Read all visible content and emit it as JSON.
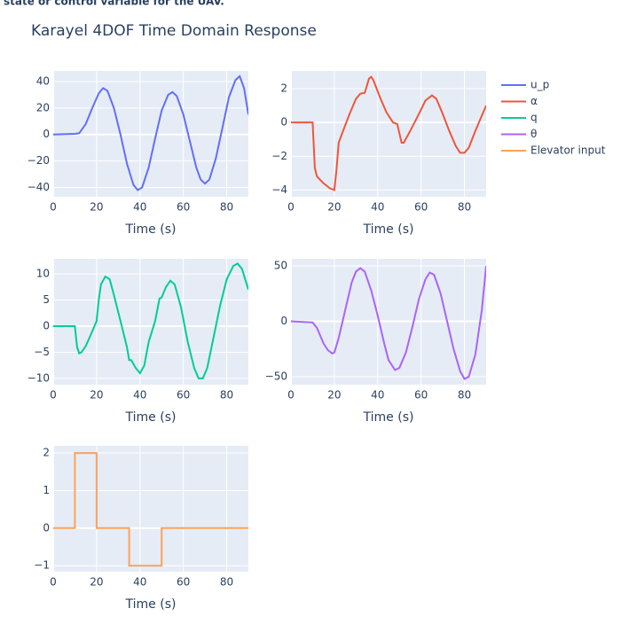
{
  "caption": "y state or control variable for the UAV.",
  "title": "Karayel 4DOF Time Domain Response",
  "chart_data": [
    {
      "type": "line",
      "xlabel": "Time (s)",
      "xlim": [
        0,
        90
      ],
      "xticks": [
        0,
        20,
        40,
        60,
        80
      ],
      "ylim": [
        -47,
        48
      ],
      "yticks": [
        {
          "value": -40,
          "label": "−40"
        },
        {
          "value": -20,
          "label": "−20"
        },
        0,
        20,
        40
      ],
      "grid": true,
      "x": [
        0,
        10,
        12,
        15,
        18,
        21,
        23,
        25,
        28,
        31,
        34,
        37,
        39,
        41,
        44,
        47,
        50,
        53,
        55,
        57,
        60,
        63,
        66,
        68,
        70,
        72,
        75,
        78,
        81,
        84,
        86,
        88,
        90
      ],
      "series": [
        {
          "name": "u_p",
          "color": "#636efa",
          "values": [
            0,
            0.5,
            1,
            8,
            20,
            31,
            35,
            33,
            20,
            0,
            -22,
            -38,
            -42,
            -40,
            -25,
            -3,
            18,
            30,
            32,
            29,
            15,
            -5,
            -25,
            -34,
            -37,
            -34,
            -18,
            5,
            28,
            41,
            44,
            35,
            15
          ]
        }
      ]
    },
    {
      "type": "line",
      "xlabel": "Time (s)",
      "xlim": [
        0,
        90
      ],
      "xticks": [
        0,
        20,
        40,
        60,
        80
      ],
      "ylim": [
        -4.4,
        3.05
      ],
      "yticks": [
        {
          "value": -4,
          "label": "−4"
        },
        {
          "value": -2,
          "label": "−2"
        },
        0,
        2
      ],
      "grid": true,
      "x": [
        0,
        10,
        11,
        12,
        15,
        18,
        20,
        21,
        22,
        24,
        27,
        30,
        32,
        34,
        36,
        37,
        38,
        41,
        44,
        47,
        49,
        51,
        52,
        55,
        59,
        62,
        65,
        67,
        70,
        73,
        76,
        78,
        80,
        82,
        85,
        88,
        90
      ],
      "series": [
        {
          "name": "α",
          "color": "#EF553B",
          "values": [
            0,
            0,
            -2.7,
            -3.2,
            -3.6,
            -3.9,
            -4.0,
            -2.8,
            -1.2,
            -0.5,
            0.5,
            1.4,
            1.7,
            1.75,
            2.6,
            2.7,
            2.5,
            1.5,
            0.6,
            0,
            -0.1,
            -1.2,
            -1.2,
            -0.5,
            0.5,
            1.3,
            1.6,
            1.4,
            0.5,
            -0.5,
            -1.4,
            -1.8,
            -1.8,
            -1.5,
            -0.5,
            0.4,
            1.0
          ]
        }
      ]
    },
    {
      "type": "line",
      "xlabel": "Time (s)",
      "xlim": [
        0,
        90
      ],
      "xticks": [
        0,
        20,
        40,
        60,
        80
      ],
      "ylim": [
        -11.2,
        12.9
      ],
      "yticks": [
        {
          "value": -10,
          "label": "−10"
        },
        {
          "value": -5,
          "label": "−5"
        },
        0,
        5,
        10
      ],
      "grid": true,
      "x": [
        0,
        10,
        11,
        12,
        13,
        15,
        18,
        20,
        21,
        22,
        24,
        26,
        28,
        31,
        34,
        35,
        36,
        38,
        40,
        42,
        44,
        47,
        49,
        50,
        52,
        54,
        56,
        59,
        62,
        65,
        67,
        69,
        71,
        74,
        77,
        80,
        83,
        85,
        87,
        90
      ],
      "series": [
        {
          "name": "q",
          "color": "#00cc96",
          "values": [
            0,
            0,
            -4,
            -5.2,
            -5,
            -3.8,
            -1,
            1,
            5,
            8,
            9.5,
            9,
            6,
            1,
            -4,
            -6.5,
            -6.5,
            -8,
            -9,
            -7.5,
            -3,
            1,
            5.3,
            5.5,
            7.5,
            8.7,
            8,
            3.5,
            -3,
            -8,
            -10,
            -10,
            -8,
            -2,
            4,
            9,
            11.5,
            12,
            11,
            7
          ]
        }
      ]
    },
    {
      "type": "line",
      "xlabel": "Time (s)",
      "xlim": [
        0,
        90
      ],
      "xticks": [
        0,
        20,
        40,
        60,
        80
      ],
      "ylim": [
        -57.2,
        56.4
      ],
      "yticks": [
        {
          "value": -50,
          "label": "−50"
        },
        0,
        50
      ],
      "grid": true,
      "x": [
        0,
        10,
        12,
        15,
        17,
        19,
        20,
        22,
        25,
        28,
        30,
        32,
        34,
        37,
        40,
        43,
        45,
        48,
        50,
        53,
        56,
        59,
        62,
        64,
        66,
        69,
        72,
        75,
        78,
        80,
        82,
        85,
        88,
        90
      ],
      "series": [
        {
          "name": "θ",
          "color": "#ab63fa",
          "values": [
            0,
            -1,
            -6,
            -20,
            -26,
            -29,
            -28,
            -15,
            10,
            35,
            45,
            48,
            45,
            28,
            5,
            -20,
            -35,
            -44,
            -42,
            -28,
            -5,
            20,
            38,
            44,
            42,
            25,
            0,
            -25,
            -45,
            -52,
            -50,
            -30,
            10,
            50
          ]
        }
      ]
    },
    {
      "type": "line",
      "xlabel": "Time (s)",
      "xlim": [
        0,
        90
      ],
      "xticks": [
        0,
        20,
        40,
        60,
        80
      ],
      "ylim": [
        -1.16,
        2.19
      ],
      "yticks": [
        {
          "value": -1,
          "label": "−1"
        },
        0,
        1,
        2
      ],
      "grid": true,
      "x": [
        0,
        10,
        10,
        20,
        20,
        35,
        35,
        50,
        50,
        90
      ],
      "series": [
        {
          "name": "Elevator input",
          "color": "#FFA15A",
          "values": [
            0,
            0,
            2,
            2,
            0,
            0,
            -1,
            -1,
            0,
            0
          ]
        }
      ]
    }
  ]
}
